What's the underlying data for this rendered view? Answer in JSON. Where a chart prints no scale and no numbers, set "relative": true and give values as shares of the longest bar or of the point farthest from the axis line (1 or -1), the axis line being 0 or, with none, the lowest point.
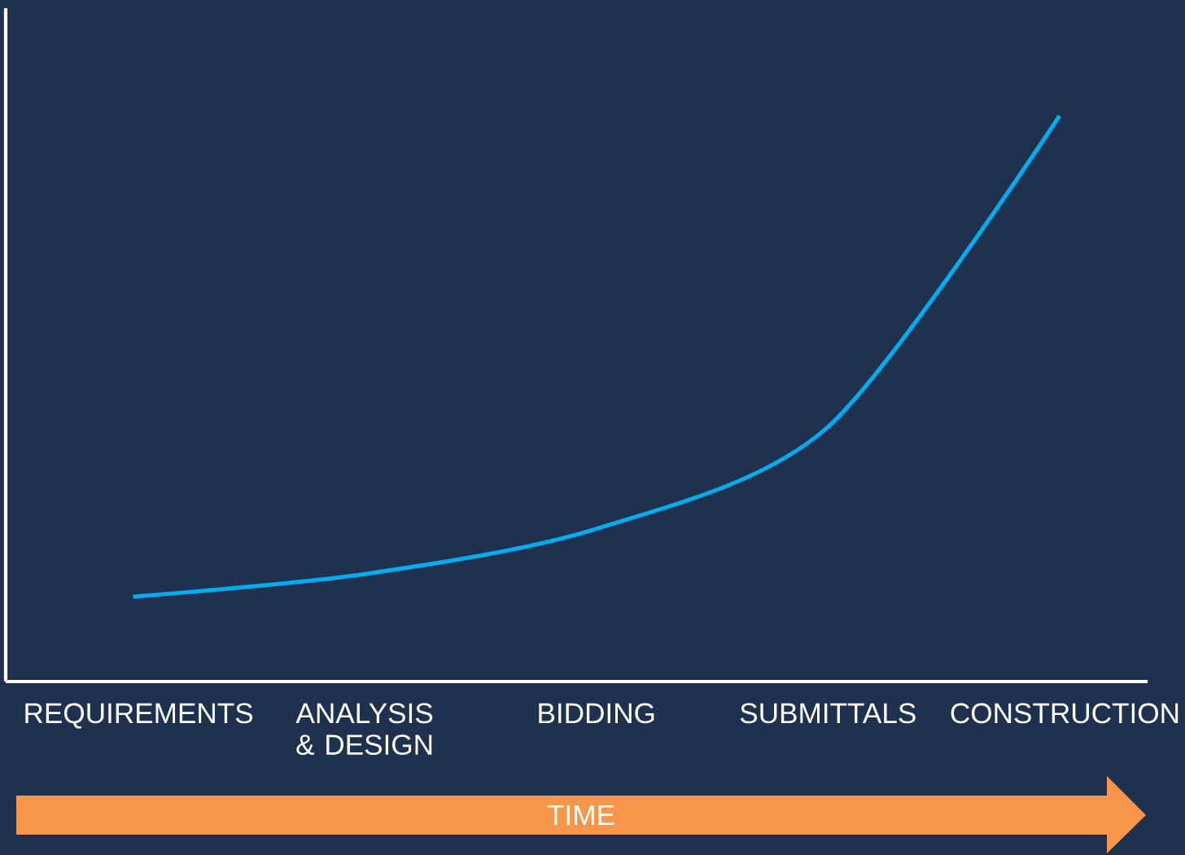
{
  "chart_data": {
    "type": "line",
    "relative": true,
    "xlabel": "TIME",
    "categories": [
      "REQUIREMENTS",
      "ANALYSIS & DESIGN",
      "BIDDING",
      "SUBMITTALS",
      "CONSTRUCTION"
    ],
    "series": [
      {
        "color": "#00aeef",
        "values": [
          0.15,
          0.19,
          0.27,
          0.45,
          1
        ]
      }
    ],
    "grid": false,
    "marker": "none",
    "line_style": "solid"
  }
}
